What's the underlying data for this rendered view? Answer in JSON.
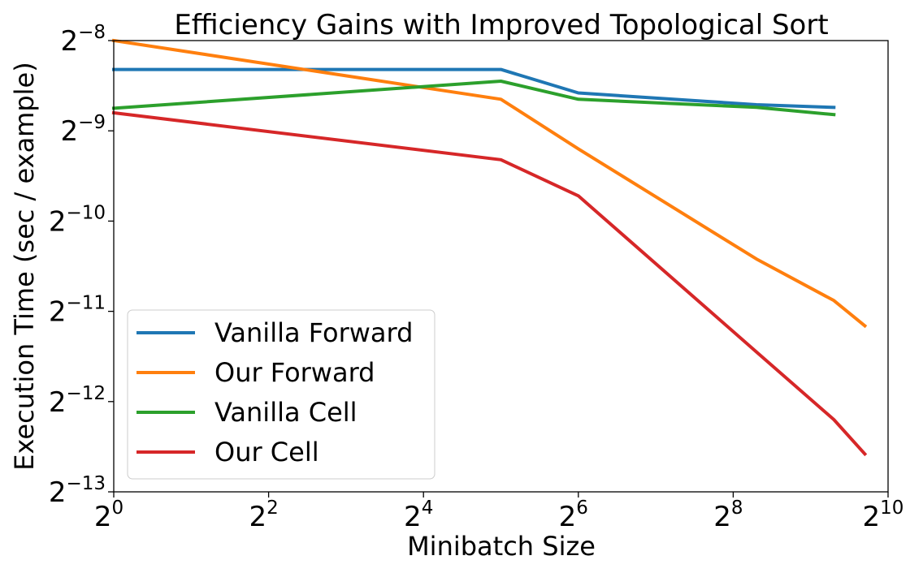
{
  "chart_data": {
    "type": "line",
    "title": "Efficiency Gains with Improved Topological Sort",
    "xlabel": "Minibatch Size",
    "ylabel": "Execution Time (sec / example)",
    "xscale": "log2",
    "yscale": "log2",
    "xlim_exp": [
      0,
      10
    ],
    "ylim_exp": [
      -13,
      -8
    ],
    "x_ticks": [
      {
        "base": "2",
        "exp": "0"
      },
      {
        "base": "2",
        "exp": "2"
      },
      {
        "base": "2",
        "exp": "4"
      },
      {
        "base": "2",
        "exp": "6"
      },
      {
        "base": "2",
        "exp": "8"
      },
      {
        "base": "2",
        "exp": "10"
      }
    ],
    "y_ticks": [
      {
        "base": "2",
        "exp": "−8"
      },
      {
        "base": "2",
        "exp": "−9"
      },
      {
        "base": "2",
        "exp": "−10"
      },
      {
        "base": "2",
        "exp": "−11"
      },
      {
        "base": "2",
        "exp": "−12"
      },
      {
        "base": "2",
        "exp": "−13"
      }
    ],
    "legend_position": "lower-left",
    "series": [
      {
        "name": "Vanilla Forward",
        "color": "#1f77b4",
        "x_exp": [
          0,
          5,
          6,
          8.3,
          9.3
        ],
        "y_exp": [
          -8.32,
          -8.32,
          -8.58,
          -8.71,
          -8.74
        ]
      },
      {
        "name": "Our Forward",
        "color": "#ff7f0e",
        "x_exp": [
          0,
          5,
          6,
          8.3,
          9.3,
          9.7
        ],
        "y_exp": [
          -8.0,
          -8.65,
          -9.2,
          -10.42,
          -10.88,
          -11.16
        ]
      },
      {
        "name": "Vanilla Cell",
        "color": "#2ca02c",
        "x_exp": [
          0,
          5,
          6,
          8.3,
          9.3
        ],
        "y_exp": [
          -8.75,
          -8.45,
          -8.65,
          -8.74,
          -8.82
        ]
      },
      {
        "name": "Our Cell",
        "color": "#d62728",
        "x_exp": [
          0,
          5,
          6,
          8.3,
          9.3,
          9.7
        ],
        "y_exp": [
          -8.8,
          -9.32,
          -9.72,
          -11.45,
          -12.2,
          -12.58
        ]
      }
    ]
  }
}
